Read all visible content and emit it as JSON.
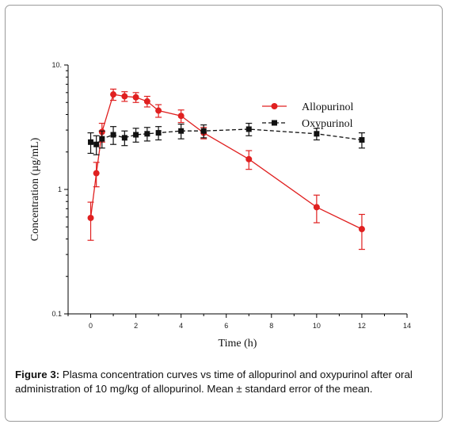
{
  "figure": {
    "caption_label": "Figure 3:",
    "caption_text": " Plasma concentration curves vs time of allopurinol and oxypurinol after oral administration of 10 mg/kg of allopurinol. Mean ± standard error of the mean."
  },
  "colors": {
    "allopurinol": "#e02020",
    "oxypurinol": "#111111",
    "axis": "#000000"
  },
  "chart_data": {
    "type": "line",
    "title": "",
    "xlabel": "Time (h)",
    "ylabel": "Concentration (µg/mL)",
    "xlim": [
      -1,
      14
    ],
    "ylim": [
      0.1,
      10
    ],
    "y_scale": "log",
    "x_ticks": [
      0,
      2,
      4,
      6,
      8,
      10,
      12,
      14
    ],
    "x_tick_labels": [
      "0",
      "2",
      "4",
      "6",
      "8",
      "10",
      "12",
      "14"
    ],
    "y_ticks": [
      0.1,
      1,
      10
    ],
    "y_tick_labels": [
      "0.1",
      "1",
      "10."
    ],
    "grid": false,
    "legend_position": "top-right",
    "series": [
      {
        "name": "Allopurinol",
        "marker": "circle",
        "x": [
          0,
          0.25,
          0.5,
          1,
          1.5,
          2,
          2.5,
          3,
          4,
          5,
          7,
          10,
          12
        ],
        "y": [
          0.59,
          1.35,
          2.9,
          5.8,
          5.6,
          5.5,
          5.1,
          4.3,
          3.9,
          2.85,
          1.75,
          0.72,
          0.48
        ],
        "err": [
          0.2,
          0.3,
          0.5,
          0.6,
          0.5,
          0.5,
          0.5,
          0.5,
          0.45,
          0.3,
          0.3,
          0.18,
          0.15
        ]
      },
      {
        "name": "Oxypurinol",
        "marker": "square",
        "x": [
          0,
          0.25,
          0.5,
          1,
          1.5,
          2,
          2.5,
          3,
          4,
          5,
          7,
          10,
          12
        ],
        "y": [
          2.4,
          2.3,
          2.55,
          2.75,
          2.6,
          2.75,
          2.8,
          2.85,
          2.95,
          2.95,
          3.05,
          2.8,
          2.5
        ],
        "err": [
          0.45,
          0.4,
          0.4,
          0.45,
          0.35,
          0.35,
          0.35,
          0.35,
          0.4,
          0.35,
          0.35,
          0.3,
          0.35
        ]
      }
    ]
  }
}
